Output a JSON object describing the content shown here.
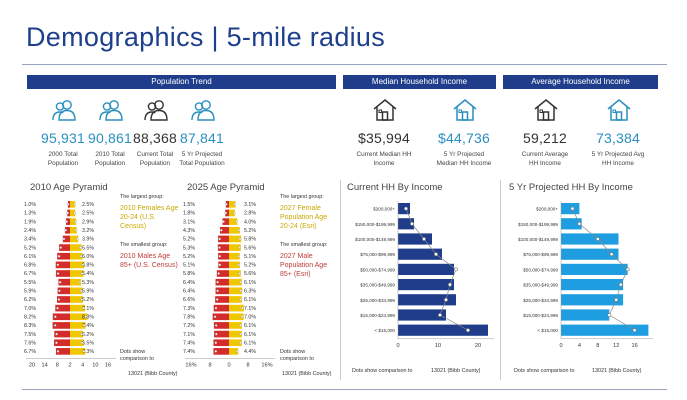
{
  "page": {
    "title": "Demographics | 5-mile radius",
    "colors": {
      "navy": "#1f3d8a",
      "teal": "#2a8fbf",
      "red": "#d42b2b",
      "yellow": "#f0c800",
      "yellow_text": "#c9a800",
      "red_text": "#c03b3b",
      "income_bar": "#1f3d8a",
      "proj_bar": "#1e9ee0"
    }
  },
  "sections": {
    "pop_trend": "Population Trend",
    "median_income": "Median Household Income",
    "avg_income": "Average Household Income"
  },
  "stats": [
    {
      "value": "95,931",
      "label1": "2000 Total",
      "label2": "Population",
      "icon": "people-icon",
      "color": "#2a8fbf"
    },
    {
      "value": "90,861",
      "label1": "2010 Total",
      "label2": "Population",
      "icon": "people-icon",
      "color": "#2a8fbf"
    },
    {
      "value": "88,368",
      "label1": "Current Total",
      "label2": "Population",
      "icon": "people-icon",
      "color": "#333333"
    },
    {
      "value": "87,841",
      "label1": "5 Yr Projected",
      "label2": "Total Population",
      "icon": "people-icon",
      "color": "#2a8fbf"
    },
    {
      "value": "$35,994",
      "label1": "Current Median HH",
      "label2": "Income",
      "icon": "house-icon",
      "color": "#333333"
    },
    {
      "value": "$44,736",
      "label1": "5 Yr Projected",
      "label2": "Median HH Income",
      "icon": "house-icon",
      "color": "#2a8fbf"
    },
    {
      "value": "59,212",
      "label1": "Current Average",
      "label2": "HH Income",
      "icon": "house-icon",
      "color": "#333333"
    },
    {
      "value": "73,384",
      "label1": "5 Yr Projected Avg",
      "label2": "HH Income",
      "icon": "house-icon",
      "color": "#2a8fbf"
    }
  ],
  "pyramid2010": {
    "title": "2010 Age Pyramid",
    "largest_label": "The largest group:",
    "largest_value": "2010 Females Age 20-24 (U.S. Census)",
    "smallest_label": "The smallest group:",
    "smallest_value": "2010 Males Age 85+ (U.S. Census)",
    "dots1": "Dots show",
    "dots2": "comparison to",
    "county": "13021 (Bibb County)"
  },
  "pyramid2025": {
    "title": "2025 Age Pyramid",
    "largest_label": "The largest group:",
    "largest_value": "2027 Female Population Age 20-24 (Esri)",
    "smallest_label": "The smallest group:",
    "smallest_value": "2027 Male Population Age 85+ (Esri)",
    "dots1": "Dots show",
    "dots2": "comparison to",
    "county": "13021 (Bibb County)"
  },
  "current_income": {
    "title": "Current HH By Income",
    "foot_label": "Dots show comparison to",
    "county": "13021 (Bibb County)"
  },
  "projected_income": {
    "title": "5 Yr Projected HH By Income",
    "foot_label": "Dots show comparison to",
    "county": "13021 (Bibb County)"
  },
  "chart_data": [
    {
      "type": "bar",
      "name": "2010 Age Pyramid",
      "male": [
        1.0,
        1.3,
        1.9,
        2.4,
        3.4,
        5.2,
        6.1,
        6.8,
        6.7,
        5.5,
        5.9,
        6.2,
        7.0,
        8.2,
        8.3,
        7.5,
        7.6,
        6.7
      ],
      "female": [
        2.5,
        2.5,
        2.9,
        3.2,
        3.9,
        5.5,
        6.0,
        6.8,
        6.4,
        5.3,
        5.9,
        6.2,
        7.1,
        8.3,
        7.4,
        6.2,
        6.5,
        7.3
      ],
      "male_labels": [
        "1.0%",
        "1.3%",
        "1.9%",
        "2.4%",
        "3.4%",
        "5.2%",
        "6.1%",
        "6.8%",
        "6.7%",
        "5.5%",
        "5.9%",
        "6.2%",
        "7.0%",
        "8.2%",
        "8.3%",
        "7.5%",
        "7.6%",
        "6.7%"
      ],
      "female_labels": [
        "2.5%",
        "2.5%",
        "2.9%",
        "3.2%",
        "3.9%",
        "5.5%",
        "6.0%",
        "6.8%",
        "6.4%",
        "5.3%",
        "5.9%",
        "6.2%",
        "7.1%",
        "8.3%",
        "7.4%",
        "6.2%",
        "6.5%",
        "7.3%"
      ],
      "xticks": [
        "20",
        "14",
        "8",
        "2",
        "4",
        "10",
        "16"
      ]
    },
    {
      "type": "bar",
      "name": "2025 Age Pyramid",
      "male": [
        1.5,
        1.8,
        3.1,
        4.3,
        5.2,
        5.3,
        5.2,
        5.1,
        5.8,
        6.4,
        6.4,
        6.6,
        7.3,
        7.8,
        7.2,
        7.1,
        7.4,
        7.4
      ],
      "female": [
        3.1,
        2.8,
        4.0,
        5.2,
        5.8,
        5.6,
        5.1,
        5.2,
        5.6,
        6.1,
        6.3,
        6.1,
        7.1,
        7.0,
        6.1,
        6.1,
        6.1,
        4.4
      ],
      "male_labels": [
        "1.5%",
        "1.8%",
        "3.1%",
        "4.3%",
        "5.2%",
        "5.3%",
        "5.2%",
        "5.1%",
        "5.8%",
        "6.4%",
        "6.4%",
        "6.6%",
        "7.3%",
        "7.8%",
        "7.2%",
        "7.1%",
        "7.4%",
        "7.4%"
      ],
      "female_labels": [
        "3.1%",
        "2.8%",
        "4.0%",
        "5.2%",
        "5.8%",
        "5.6%",
        "5.1%",
        "5.2%",
        "5.6%",
        "6.1%",
        "6.3%",
        "6.1%",
        "7.1%",
        "7.0%",
        "6.1%",
        "6.1%",
        "6.1%",
        "4.4%"
      ],
      "xticks": [
        "16%",
        "8",
        "0",
        "8",
        "16%"
      ]
    },
    {
      "type": "bar",
      "name": "Current HH By Income",
      "categories": [
        "$200,000+",
        "$150,000-$199,999",
        "$100,000-$149,999",
        "$75,000-$99,999",
        "$50,000-$74,999",
        "$35,000-$49,999",
        "$25,000-$34,999",
        "$15,000-$24,999",
        "< $15,000"
      ],
      "values": [
        3.0,
        4.0,
        8.5,
        11.0,
        14.0,
        14.0,
        14.5,
        12.0,
        22.5
      ],
      "comparison": [
        2.0,
        3.5,
        6.5,
        9.5,
        14.5,
        13.0,
        12.0,
        10.5,
        17.5
      ],
      "xticks": [
        "0",
        "10",
        "20"
      ],
      "xlim": [
        0,
        24
      ]
    },
    {
      "type": "bar",
      "name": "5 Yr Projected HH By Income",
      "categories": [
        "$200,000+",
        "$150,000-$199,999",
        "$100,000-$149,999",
        "$75,000-$99,999",
        "$50,000-$74,999",
        "$35,000-$49,999",
        "$25,000-$34,999",
        "$15,000-$24,999",
        "< $15,000"
      ],
      "values": [
        4.0,
        4.5,
        12.5,
        12.5,
        14.5,
        13.5,
        13.5,
        10.5,
        19.0
      ],
      "comparison": [
        2.5,
        4.0,
        8.0,
        11.0,
        14.5,
        13.0,
        12.0,
        10.5,
        16.0
      ],
      "xticks": [
        "0",
        "4",
        "8",
        "12",
        "16"
      ],
      "xlim": [
        0,
        20
      ]
    }
  ]
}
